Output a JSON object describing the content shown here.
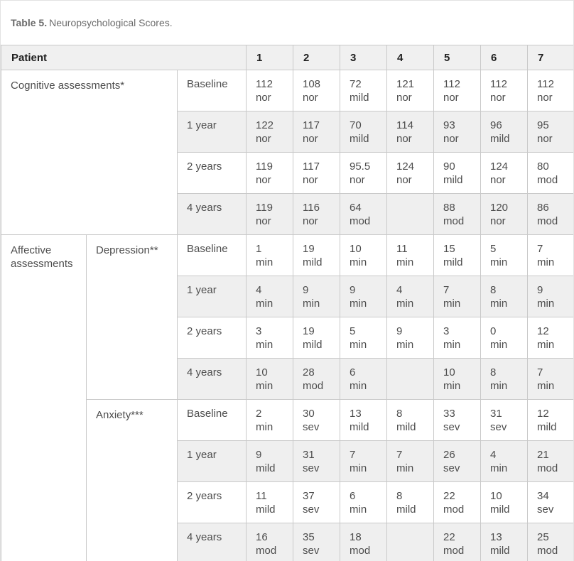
{
  "caption": {
    "label": "Table 5.",
    "text": "Neuropsychological Scores."
  },
  "table": {
    "header": {
      "row_label": "Patient",
      "patients": [
        "1",
        "2",
        "3",
        "4",
        "5",
        "6",
        "7"
      ]
    },
    "sections": [
      {
        "group": "Cognitive assessments*",
        "subgroups": [
          {
            "name": "",
            "rows": [
              {
                "time": "Baseline",
                "cells": [
                  [
                    "112",
                    "nor"
                  ],
                  [
                    "108",
                    "nor"
                  ],
                  [
                    "72",
                    "mild"
                  ],
                  [
                    "121",
                    "nor"
                  ],
                  [
                    "112",
                    "nor"
                  ],
                  [
                    "112",
                    "nor"
                  ],
                  [
                    "112",
                    "nor"
                  ]
                ]
              },
              {
                "time": "1 year",
                "cells": [
                  [
                    "122",
                    "nor"
                  ],
                  [
                    "117",
                    "nor"
                  ],
                  [
                    "70",
                    "mild"
                  ],
                  [
                    "114",
                    "nor"
                  ],
                  [
                    "93",
                    "nor"
                  ],
                  [
                    "96",
                    "mild"
                  ],
                  [
                    "95",
                    "nor"
                  ]
                ]
              },
              {
                "time": "2 years",
                "cells": [
                  [
                    "119",
                    "nor"
                  ],
                  [
                    "117",
                    "nor"
                  ],
                  [
                    "95.5",
                    "nor"
                  ],
                  [
                    "124",
                    "nor"
                  ],
                  [
                    "90",
                    "mild"
                  ],
                  [
                    "124",
                    "nor"
                  ],
                  [
                    "80",
                    "mod"
                  ]
                ]
              },
              {
                "time": "4 years",
                "cells": [
                  [
                    "119",
                    "nor"
                  ],
                  [
                    "116",
                    "nor"
                  ],
                  [
                    "64",
                    "mod"
                  ],
                  [],
                  [
                    "88",
                    "mod"
                  ],
                  [
                    "120",
                    "nor"
                  ],
                  [
                    "86",
                    "mod"
                  ]
                ]
              }
            ]
          }
        ]
      },
      {
        "group": "Affective assessments",
        "subgroups": [
          {
            "name": "Depression**",
            "rows": [
              {
                "time": "Baseline",
                "cells": [
                  [
                    "1",
                    "min"
                  ],
                  [
                    "19",
                    "mild"
                  ],
                  [
                    "10",
                    "min"
                  ],
                  [
                    "11",
                    "min"
                  ],
                  [
                    "15",
                    "mild"
                  ],
                  [
                    "5",
                    "min"
                  ],
                  [
                    "7",
                    "min"
                  ]
                ]
              },
              {
                "time": "1 year",
                "cells": [
                  [
                    "4",
                    "min"
                  ],
                  [
                    "9",
                    "min"
                  ],
                  [
                    "9",
                    "min"
                  ],
                  [
                    "4",
                    "min"
                  ],
                  [
                    "7",
                    "min"
                  ],
                  [
                    "8",
                    "min"
                  ],
                  [
                    "9",
                    "min"
                  ]
                ]
              },
              {
                "time": "2 years",
                "cells": [
                  [
                    "3",
                    "min"
                  ],
                  [
                    "19",
                    "mild"
                  ],
                  [
                    "5",
                    "min"
                  ],
                  [
                    "9",
                    "min"
                  ],
                  [
                    "3",
                    "min"
                  ],
                  [
                    "0",
                    "min"
                  ],
                  [
                    "12",
                    "min"
                  ]
                ]
              },
              {
                "time": "4 years",
                "cells": [
                  [
                    "10",
                    "min"
                  ],
                  [
                    "28",
                    "mod"
                  ],
                  [
                    "6",
                    "min"
                  ],
                  [],
                  [
                    "10",
                    "min"
                  ],
                  [
                    "8",
                    "min"
                  ],
                  [
                    "7",
                    "min"
                  ]
                ]
              }
            ]
          },
          {
            "name": "Anxiety***",
            "rows": [
              {
                "time": "Baseline",
                "cells": [
                  [
                    "2",
                    "min"
                  ],
                  [
                    "30",
                    "sev"
                  ],
                  [
                    "13",
                    "mild"
                  ],
                  [
                    "8",
                    "mild"
                  ],
                  [
                    "33",
                    "sev"
                  ],
                  [
                    "31",
                    "sev"
                  ],
                  [
                    "12",
                    "mild"
                  ]
                ]
              },
              {
                "time": "1 year",
                "cells": [
                  [
                    "9",
                    "mild"
                  ],
                  [
                    "31",
                    "sev"
                  ],
                  [
                    "7",
                    "min"
                  ],
                  [
                    "7",
                    "min"
                  ],
                  [
                    "26",
                    "sev"
                  ],
                  [
                    "4",
                    "min"
                  ],
                  [
                    "21",
                    "mod"
                  ]
                ]
              },
              {
                "time": "2 years",
                "cells": [
                  [
                    "11",
                    "mild"
                  ],
                  [
                    "37",
                    "sev"
                  ],
                  [
                    "6",
                    "min"
                  ],
                  [
                    "8",
                    "mild"
                  ],
                  [
                    "22",
                    "mod"
                  ],
                  [
                    "10",
                    "mild"
                  ],
                  [
                    "34",
                    "sev"
                  ]
                ]
              },
              {
                "time": "4 years",
                "cells": [
                  [
                    "16",
                    "mod"
                  ],
                  [
                    "35",
                    "sev"
                  ],
                  [
                    "18",
                    "mod"
                  ],
                  [],
                  [
                    "22",
                    "mod"
                  ],
                  [
                    "13",
                    "mild"
                  ],
                  [
                    "25",
                    "mod"
                  ]
                ]
              }
            ]
          }
        ]
      }
    ]
  },
  "colors": {
    "stripe": "#efefef",
    "header_bg": "#f0f0f0",
    "border": "#c9c9c9",
    "text": "#4d4d4d",
    "header_text": "#1f1f1f",
    "caption_text": "#6b6b6b"
  }
}
